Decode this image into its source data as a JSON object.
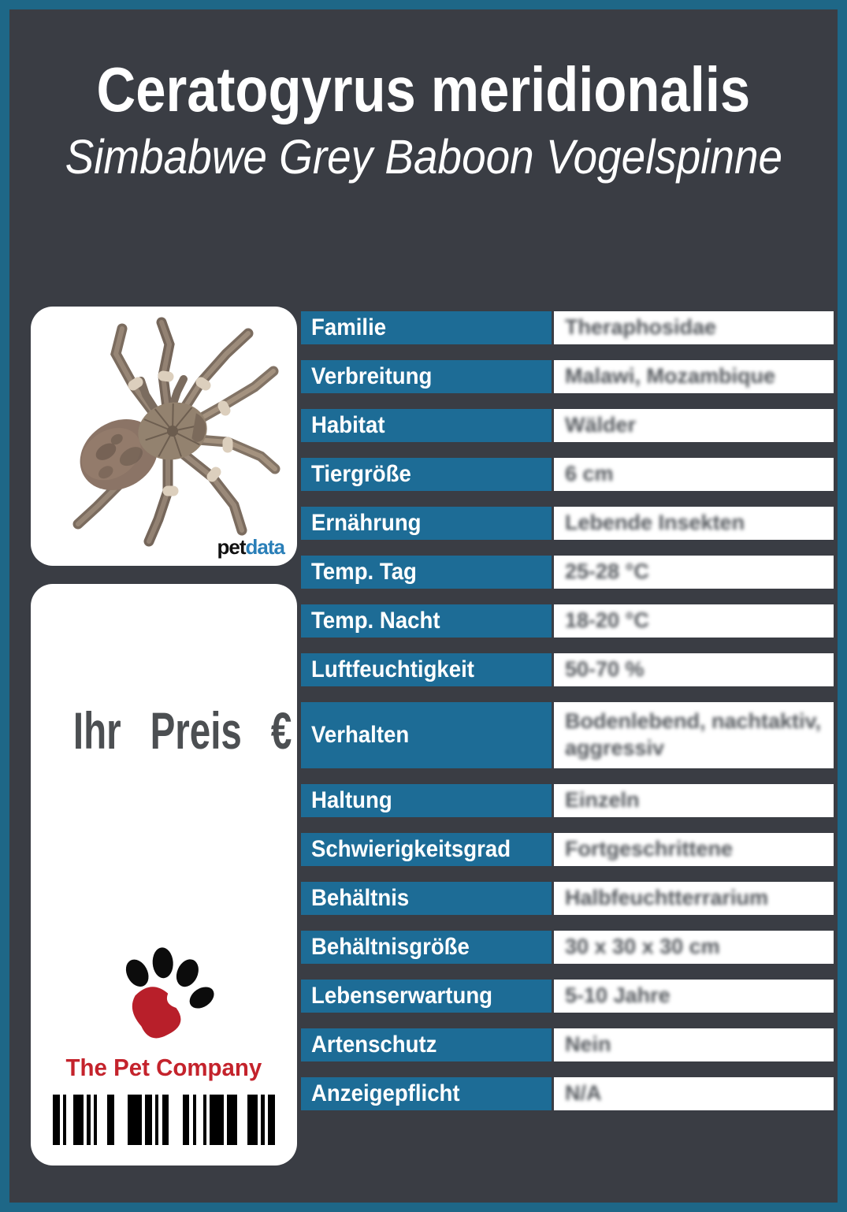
{
  "header": {
    "title": "Ceratogyrus meridionalis",
    "subtitle": "Simbabwe Grey Baboon Vogelspinne"
  },
  "photo_card": {
    "brand_pet": "pet",
    "brand_data": "data"
  },
  "price_card": {
    "price_label": "Ihr Preis €",
    "company": "The Pet Company"
  },
  "table": {
    "rows": [
      {
        "label": "Familie",
        "value": "Theraphosidae"
      },
      {
        "label": "Verbreitung",
        "value": "Malawi, Mozambique"
      },
      {
        "label": "Habitat",
        "value": "Wälder"
      },
      {
        "label": "Tiergröße",
        "value": "6 cm"
      },
      {
        "label": "Ernährung",
        "value": "Lebende Insekten"
      },
      {
        "label": "Temp. Tag",
        "value": "25-28 °C"
      },
      {
        "label": "Temp. Nacht",
        "value": "18-20 °C"
      },
      {
        "label": "Luftfeuchtigkeit",
        "value": "50-70 %"
      },
      {
        "label": "Verhalten",
        "value": "Bodenlebend, nachtaktiv, aggressiv",
        "tall": true
      },
      {
        "label": "Haltung",
        "value": "Einzeln"
      },
      {
        "label": "Schwierigkeitsgrad",
        "value": "Fortgeschrittene"
      },
      {
        "label": "Behältnis",
        "value": "Halbfeuchtterrarium"
      },
      {
        "label": "Behältnisgröße",
        "value": "30 x 30 x 30 cm"
      },
      {
        "label": "Lebenserwartung",
        "value": "5-10 Jahre"
      },
      {
        "label": "Artenschutz",
        "value": "Nein"
      },
      {
        "label": "Anzeigepflicht",
        "value": "N/A"
      }
    ]
  },
  "barcode": {
    "pattern": [
      2,
      1,
      1,
      2,
      3,
      1,
      1,
      1,
      1,
      3,
      2,
      4,
      4,
      1,
      2,
      1,
      1,
      1,
      2,
      4,
      2,
      1,
      1,
      2,
      1,
      1,
      4,
      1,
      3,
      3,
      3,
      1,
      1,
      1,
      2
    ]
  },
  "colors": {
    "frame_blue": "#1e6787",
    "header_cell_blue": "#1d6c96",
    "background_dark": "#3a3d44",
    "brand_red": "#c4232c",
    "petdata_blue": "#2a7fb8"
  }
}
